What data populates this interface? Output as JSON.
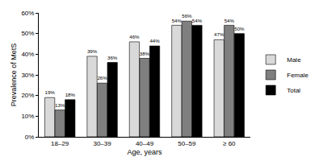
{
  "chart_data": {
    "type": "bar",
    "x_label": "Age, years",
    "y_label": "Prevalence of MetS",
    "categories": [
      "18–29",
      "30–39",
      "40–49",
      "50–59",
      "≥ 60"
    ],
    "series": [
      {
        "name": "Male",
        "color": "#d9d9d9",
        "values": [
          19,
          39,
          46,
          54,
          47
        ],
        "value_labels": [
          "19%",
          "39%",
          "46%",
          "54%",
          "47%"
        ]
      },
      {
        "name": "Female",
        "color": "#7f7f7f",
        "values": [
          13,
          26,
          38,
          56,
          54
        ],
        "value_labels": [
          "13%",
          "26%",
          "38%",
          "56%",
          "54%"
        ]
      },
      {
        "name": "Total",
        "color": "#000000",
        "values": [
          18,
          36,
          44,
          54,
          50
        ],
        "value_labels": [
          "18%",
          "36%",
          "44%",
          "54%",
          "50%"
        ]
      }
    ],
    "ylim": [
      0,
      60
    ],
    "yticks": [
      {
        "value": 0,
        "label": "0%"
      },
      {
        "value": 10,
        "label": "10%"
      },
      {
        "value": 20,
        "label": "20%"
      },
      {
        "value": 30,
        "label": "30%"
      },
      {
        "value": 40,
        "label": "40%"
      },
      {
        "value": 50,
        "label": "50%"
      },
      {
        "value": 60,
        "label": "60%"
      }
    ],
    "grid": false,
    "legend": "right",
    "data_labels": true
  }
}
